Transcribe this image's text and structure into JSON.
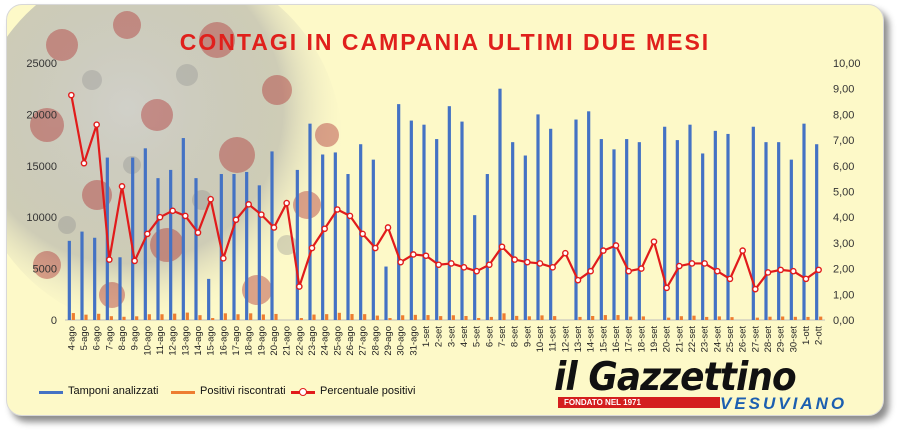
{
  "title": "CONTAGI IN CAMPANIA ULTIMI DUE MESI",
  "colors": {
    "tamponi": "#4472c4",
    "positivi": "#ed7d31",
    "percentuale": "#e11b1b",
    "title": "#e0201c",
    "background": "#fdf9c8"
  },
  "legend": {
    "tamponi": "Tamponi analizzati",
    "positivi": "Positivi riscontrati",
    "percentuale": "Percentuale positivi"
  },
  "logo": {
    "main": "il Gazzettino",
    "sub": "VESUVIANO",
    "founded": "FONDATO NEL 1971"
  },
  "chart_data": {
    "type": "bar",
    "categories": [
      "4-ago",
      "5-ago",
      "6-ago",
      "7-ago",
      "8-ago",
      "9-ago",
      "10-ago",
      "11-ago",
      "12-ago",
      "13-ago",
      "14-ago",
      "15-ago",
      "16-ago",
      "17-ago",
      "18-ago",
      "19-ago",
      "20-ago",
      "21-ago",
      "22-ago",
      "23-ago",
      "24-ago",
      "25-ago",
      "26-ago",
      "27-ago",
      "28-ago",
      "29-ago",
      "30-ago",
      "31-ago",
      "1-set",
      "2-set",
      "3-set",
      "4-set",
      "5-set",
      "6-set",
      "7-set",
      "8-set",
      "9-set",
      "10-set",
      "11-set",
      "12-set",
      "13-set",
      "14-set",
      "15-set",
      "16-set",
      "17-set",
      "18-set",
      "19-set",
      "20-set",
      "21-set",
      "22-set",
      "23-set",
      "24-set",
      "25-set",
      "26-set",
      "27-set",
      "28-set",
      "29-set",
      "30-set",
      "1-ott",
      "2-ott"
    ],
    "series": [
      {
        "name": "Tamponi analizzati",
        "axis": "left",
        "kind": "bar",
        "values": [
          7700,
          8600,
          8000,
          15800,
          6100,
          15800,
          16700,
          13800,
          14600,
          17700,
          13800,
          4000,
          14200,
          14200,
          14400,
          13100,
          16400,
          0,
          14600,
          19100,
          16100,
          16300,
          14200,
          17100,
          15600,
          5200,
          21000,
          19400,
          19000,
          17600,
          20800,
          19300,
          10200,
          14200,
          22500,
          17300,
          16000,
          20000,
          18600,
          0,
          19500,
          20300,
          17600,
          16600,
          17600,
          17300,
          0,
          18800,
          17500,
          19000,
          16200,
          18400,
          18100,
          0,
          18800,
          17300,
          17300,
          15600,
          19100,
          17100
        ]
      },
      {
        "name": "Positivi riscontrati",
        "axis": "left",
        "kind": "bar",
        "values": [
          675,
          520,
          605,
          370,
          315,
          360,
          560,
          560,
          620,
          720,
          470,
          190,
          650,
          560,
          650,
          540,
          590,
          0,
          190,
          530,
          570,
          700,
          580,
          570,
          430,
          190,
          460,
          500,
          480,
          380,
          460,
          390,
          195,
          300,
          650,
          400,
          360,
          450,
          380,
          0,
          300,
          390,
          480,
          480,
          330,
          350,
          0,
          230,
          370,
          420,
          300,
          350,
          280,
          0,
          230,
          320,
          340,
          310,
          300,
          330
        ]
      },
      {
        "name": "Percentuale positivi",
        "axis": "right",
        "kind": "line",
        "values": [
          8.75,
          6.1,
          7.6,
          2.35,
          5.2,
          2.3,
          3.35,
          4.0,
          4.25,
          4.05,
          3.4,
          4.7,
          2.4,
          3.9,
          4.5,
          4.1,
          3.6,
          4.55,
          1.3,
          2.8,
          3.55,
          4.3,
          4.05,
          3.35,
          2.8,
          3.6,
          2.25,
          2.55,
          2.5,
          2.15,
          2.2,
          2.05,
          1.9,
          2.15,
          2.85,
          2.35,
          2.25,
          2.2,
          2.05,
          2.6,
          1.55,
          1.9,
          2.7,
          2.9,
          1.9,
          2.0,
          3.05,
          1.25,
          2.1,
          2.2,
          2.2,
          1.9,
          1.6,
          2.7,
          1.2,
          1.85,
          1.95,
          1.9,
          1.6,
          1.95
        ]
      }
    ],
    "y_left": {
      "min": 0,
      "max": 25000,
      "ticks": [
        "0",
        "5000",
        "10000",
        "15000",
        "20000",
        "25000"
      ]
    },
    "y_right": {
      "min": 0,
      "max": 10,
      "ticks": [
        "0,00",
        "1,00",
        "2,00",
        "3,00",
        "4,00",
        "5,00",
        "6,00",
        "7,00",
        "8,00",
        "9,00",
        "10,00"
      ]
    },
    "grid": false,
    "legend_position": "bottom-left"
  }
}
